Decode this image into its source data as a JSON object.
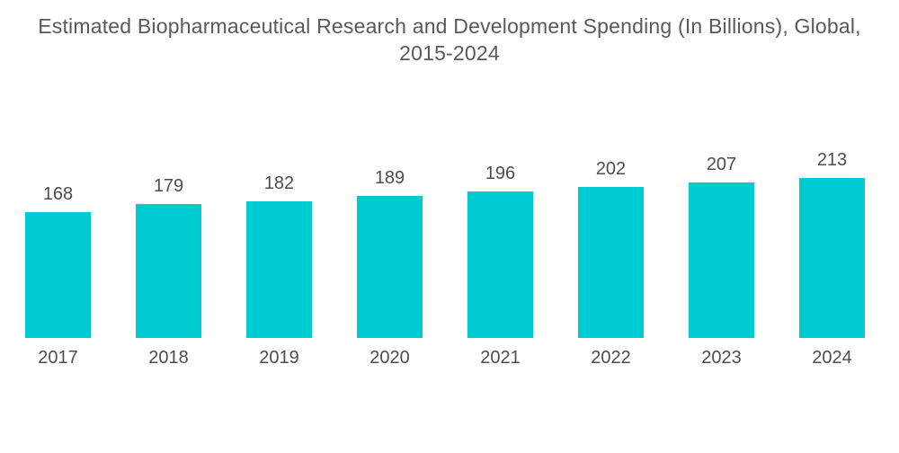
{
  "title": {
    "line1": "Estimated Biopharmaceutical Research and Development Spending (In Billions), Global,",
    "line2": "2015-2024"
  },
  "chart_data": {
    "type": "bar",
    "title": "Estimated Biopharmaceutical Research and Development Spending (In Billions), Global, 2015-2024",
    "categories": [
      "2017",
      "2018",
      "2019",
      "2020",
      "2021",
      "2022",
      "2023",
      "2024"
    ],
    "values": [
      168,
      179,
      182,
      189,
      196,
      202,
      207,
      213
    ],
    "xlabel": "",
    "ylabel": "",
    "ylim": [
      0,
      225
    ],
    "grid": false,
    "axes_visible": false,
    "data_labels": true,
    "legend": null,
    "bar_color": "#00CBD3",
    "label_color": "#4D4D4F",
    "title_color": "#59595B",
    "background_color": "#FFFFFF"
  }
}
